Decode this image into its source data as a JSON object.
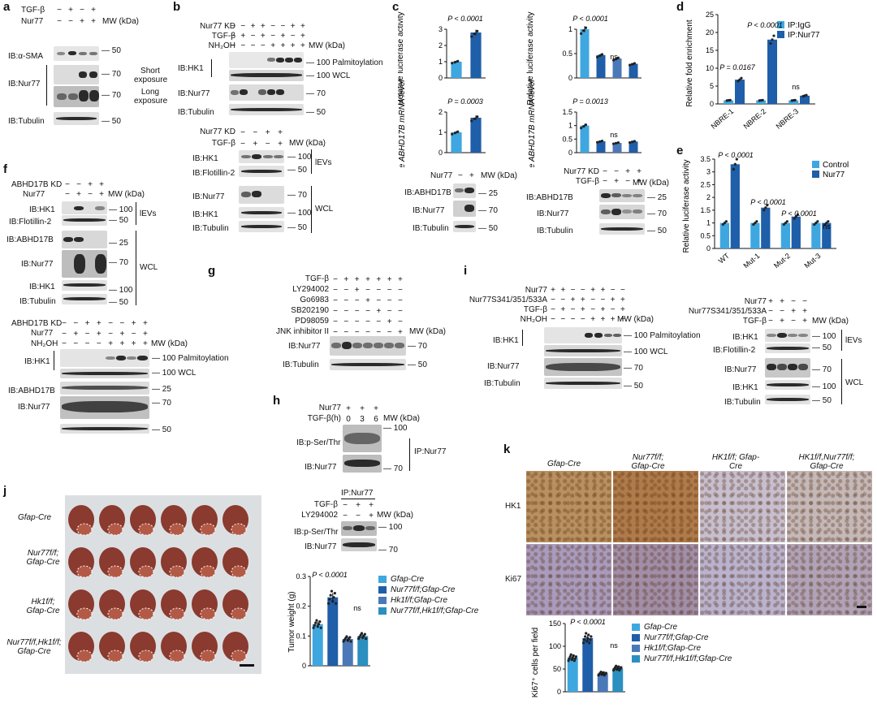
{
  "panel_letters": [
    "a",
    "b",
    "c",
    "d",
    "e",
    "f",
    "g",
    "h",
    "i",
    "j",
    "k"
  ],
  "panel_a": {
    "cond_rows": [
      [
        "TGF-β",
        "−",
        "+",
        "−",
        "+"
      ],
      [
        "Nur77",
        "−",
        "−",
        "+",
        "+"
      ]
    ],
    "mw_header": "MW (kDa)",
    "blots": [
      "IB:α-SMA",
      "IB:Nur77",
      "IB:Tubulin"
    ],
    "mw_marks": [
      "50",
      "70",
      "70",
      "50"
    ],
    "notes": [
      "Short exposure",
      "Long exposure"
    ]
  },
  "panel_b": {
    "top_cond": [
      [
        "Nur77 KD",
        "−",
        "−",
        "+",
        "+",
        "−",
        "−",
        "+",
        "+"
      ],
      [
        "TGF-β",
        "−",
        "+",
        "−",
        "+",
        "−",
        "+",
        "−",
        "+"
      ],
      [
        "NH₂OH",
        "−",
        "−",
        "−",
        "−",
        "+",
        "+",
        "+",
        "+"
      ]
    ],
    "top_blots": [
      "IB:HK1",
      "IB:Nur77",
      "IB:Tubulin"
    ],
    "top_notes": [
      "Palmitoylation",
      "WCL"
    ],
    "top_mw": [
      "100",
      "100",
      "70",
      "50"
    ],
    "bottom_cond": [
      [
        "Nur77 KD",
        "−",
        "−",
        "+",
        "+"
      ],
      [
        "TGF-β",
        "−",
        "+",
        "−",
        "+"
      ]
    ],
    "bottom_blots": [
      "IB:HK1",
      "IB:Flotillin-2",
      "IB:Nur77",
      "IB:HK1",
      "IB:Tubulin"
    ],
    "bottom_mw": [
      "100",
      "50",
      "70",
      "100",
      "50"
    ],
    "groups": [
      "lEVs",
      "WCL"
    ],
    "mw_header": "MW (kDa)"
  },
  "panel_c": {
    "ylabels": [
      "Relative luciferase activity",
      "Relative luciferase activity",
      "Relative ABHD17B mRNA level",
      "Relative ABHD17B mRNA level"
    ],
    "pvals": [
      "P < 0.0001",
      "P < 0.0001",
      "ns",
      "P = 0.0003",
      "P = 0.0013",
      "ns"
    ],
    "left_cond": [
      "Nur77",
      "−",
      "+"
    ],
    "right_cond": [
      [
        "Nur77 KD",
        "−",
        "−",
        "+",
        "+"
      ],
      [
        "TGF-β",
        "−",
        "+",
        "−",
        "+"
      ]
    ],
    "blots": [
      "IB:ABHD17B",
      "IB:Nur77",
      "IB:Tubulin"
    ],
    "mw": [
      "25",
      "70",
      "50"
    ],
    "mw_header": "MW (kDa)"
  },
  "panel_d": {
    "ylabel": "Relative fold enrichment",
    "legend": [
      "IP:IgG",
      "IP:Nur77"
    ],
    "categories": [
      "NBRE-1",
      "NBRE-2",
      "NBRE-3"
    ],
    "pvals": [
      "P = 0.0167",
      "P < 0.0001",
      "ns"
    ]
  },
  "panel_e": {
    "ylabel": "Relative luciferase activity",
    "legend": [
      "Control",
      "Nur77"
    ],
    "categories": [
      "WT",
      "Mut-1",
      "Mut-2",
      "Mut-3"
    ],
    "pvals": [
      "P < 0.0001",
      "P < 0.0001",
      "P < 0.0001",
      "ns"
    ]
  },
  "panel_f": {
    "top_cond": [
      [
        "ABHD17B KD",
        "−",
        "−",
        "+",
        "+"
      ],
      [
        "Nur77",
        "−",
        "+",
        "−",
        "+"
      ]
    ],
    "top_blots": [
      "IB:HK1",
      "IB:Flotillin-2",
      "IB:ABHD17B",
      "IB:Nur77",
      "IB:HK1",
      "IB:Tubulin"
    ],
    "top_mw": [
      "100",
      "50",
      "25",
      "70",
      "100",
      "50"
    ],
    "groups": [
      "lEVs",
      "WCL"
    ],
    "bottom_cond": [
      [
        "ABHD17B KD",
        "−",
        "−",
        "+",
        "+",
        "−",
        "−",
        "+",
        "+"
      ],
      [
        "Nur77",
        "−",
        "+",
        "−",
        "+",
        "−",
        "+",
        "−",
        "+"
      ],
      [
        "NH₂OH",
        "−",
        "−",
        "−",
        "−",
        "+",
        "+",
        "+",
        "+"
      ]
    ],
    "bottom_blots": [
      "IB:HK1",
      "IB:ABHD17B",
      "IB:Nur77"
    ],
    "bottom_notes": [
      "Palmitoylation",
      "WCL"
    ],
    "bottom_mw": [
      "100",
      "100",
      "25",
      "70",
      "50"
    ],
    "mw_header": "MW (kDa)"
  },
  "panel_g": {
    "cond": [
      [
        "TGF-β",
        "−",
        "+",
        "+",
        "+",
        "+",
        "+",
        "+"
      ],
      [
        "LY294002",
        "−",
        "−",
        "+",
        "−",
        "−",
        "−",
        "−"
      ],
      [
        "Go6983",
        "−",
        "−",
        "−",
        "+",
        "−",
        "−",
        "−"
      ],
      [
        "SB202190",
        "−",
        "−",
        "−",
        "−",
        "+",
        "−",
        "−"
      ],
      [
        "PD98059",
        "−",
        "−",
        "−",
        "−",
        "−",
        "+",
        "−"
      ],
      [
        "JNK inhibitor II",
        "−",
        "−",
        "−",
        "−",
        "−",
        "−",
        "+"
      ]
    ],
    "blots": [
      "IB:Nur77",
      "IB:Tubulin"
    ],
    "mw": [
      "70",
      "50"
    ],
    "mw_header": "MW (kDa)"
  },
  "panel_h": {
    "top_cond": [
      [
        "Nur77",
        "+",
        "+",
        "+"
      ],
      [
        "TGF-β(h)",
        "0",
        "3",
        "6"
      ]
    ],
    "top_blots": [
      "IB:p-Ser/Thr",
      "IB:Nur77"
    ],
    "top_mw": [
      "100",
      "70"
    ],
    "ip": "IP:Nur77",
    "bottom_header": "IP:Nur77",
    "bottom_cond": [
      [
        "TGF-β",
        "−",
        "+",
        "+"
      ],
      [
        "LY294002",
        "−",
        "−",
        "+"
      ]
    ],
    "bottom_blots": [
      "IB:p-Ser/Thr",
      "IB:Nur77"
    ],
    "bottom_mw": [
      "100",
      "70"
    ],
    "mw_header": "MW (kDa)"
  },
  "panel_i": {
    "top_cond": [
      [
        "Nur77",
        "+",
        "+",
        "−",
        "−",
        "+",
        "+",
        "−",
        "−"
      ],
      [
        "Nur77S341/351/533A",
        "−",
        "−",
        "+",
        "+",
        "−",
        "−",
        "+",
        "+"
      ],
      [
        "TGF-β",
        "−",
        "+",
        "−",
        "+",
        "−",
        "+",
        "−",
        "+"
      ],
      [
        "NH₂OH",
        "−",
        "−",
        "−",
        "−",
        "+",
        "+",
        "+",
        "+"
      ]
    ],
    "top_blots": [
      "IB:HK1",
      "IB:Nur77",
      "IB:Tubulin"
    ],
    "top_notes": [
      "Palmitoylation",
      "WCL"
    ],
    "top_mw": [
      "100",
      "100",
      "70",
      "50"
    ],
    "right_cond": [
      [
        "Nur77",
        "+",
        "+",
        "−",
        "−"
      ],
      [
        "Nur77S341/351/533A",
        "−",
        "−",
        "+",
        "+"
      ],
      [
        "TGF-β",
        "−",
        "+",
        "−",
        "+"
      ]
    ],
    "right_blots": [
      "IB:HK1",
      "IB:Flotillin-2",
      "IB:Nur77",
      "IB:HK1",
      "IB:Tubulin"
    ],
    "right_mw": [
      "100",
      "50",
      "70",
      "100",
      "50"
    ],
    "groups": [
      "lEVs",
      "WCL"
    ],
    "mw_header": "MW (kDa)"
  },
  "panel_j": {
    "row_labels": [
      "Gfap-Cre",
      "Nur77f/f; Gfap-Cre",
      "Hk1f/f; Gfap-Cre",
      "Nur77f/f,Hk1f/f; Gfap-Cre"
    ],
    "ylabel": "Tumor weight (g)",
    "legend": [
      "Gfap-Cre",
      "Nur77f/f;Gfap-Cre",
      "Hk1f/f;Gfap-Cre",
      "Nur77f/f,Hk1f/f;Gfap-Cre"
    ],
    "pvals": [
      "P < 0.0001",
      "ns"
    ]
  },
  "panel_k": {
    "col_labels": [
      "Gfap-Cre",
      "Nur77f/f; Gfap-Cre",
      "HK1f/f; Gfap-Cre",
      "HK1f/f,Nur77f/f; Gfap-Cre"
    ],
    "row_labels": [
      "HK1",
      "Ki67"
    ],
    "ylabel": "Ki67⁺ cells per field",
    "legend": [
      "Gfap-Cre",
      "Nur77f/f;Gfap-Cre",
      "Hk1f/f;Gfap-Cre",
      "Nur77f/f,Hk1f/f;Gfap-Cre"
    ],
    "pvals": [
      "P < 0.0001",
      "ns"
    ]
  },
  "colors": {
    "light_blue": "#3fa7e0",
    "dark_blue": "#1f5ea8",
    "mid_blue": "#4b79b8",
    "teal": "#2b8fbf",
    "brown": "#a04436"
  },
  "chart_data": [
    {
      "id": "c1",
      "type": "bar",
      "categories": [
        "−",
        "+"
      ],
      "values": [
        1.0,
        2.8
      ],
      "ylim": [
        0,
        3
      ],
      "yticks": [
        0,
        1,
        2,
        3
      ],
      "ylabel": "Relative luciferase activity"
    },
    {
      "id": "c2",
      "type": "bar",
      "categories": [
        "−/−",
        "−/+",
        "+/−",
        "+/+"
      ],
      "values": [
        1.0,
        0.47,
        0.4,
        0.29
      ],
      "ylim": [
        0,
        1.0
      ],
      "yticks": [
        0,
        0.5,
        1.0
      ],
      "ylabel": "Relative luciferase activity"
    },
    {
      "id": "c3",
      "type": "bar",
      "categories": [
        "−",
        "+"
      ],
      "values": [
        1.0,
        1.72
      ],
      "ylim": [
        0,
        2.0
      ],
      "yticks": [
        0,
        1.0,
        2.0
      ],
      "ylabel": "Relative ABHD17B mRNA level"
    },
    {
      "id": "c4",
      "type": "bar",
      "categories": [
        "−/−",
        "−/+",
        "+/−",
        "+/+"
      ],
      "values": [
        1.0,
        0.42,
        0.36,
        0.41
      ],
      "ylim": [
        0,
        1.5
      ],
      "yticks": [
        0,
        0.5,
        1.0,
        1.5
      ],
      "ylabel": "Relative ABHD17B mRNA level"
    },
    {
      "id": "d",
      "type": "bar",
      "categories": [
        "NBRE-1",
        "NBRE-2",
        "NBRE-3"
      ],
      "series": [
        {
          "name": "IP:IgG",
          "values": [
            1,
            1,
            1
          ]
        },
        {
          "name": "IP:Nur77",
          "values": [
            6.8,
            18,
            2.3
          ]
        }
      ],
      "ylim": [
        0,
        25
      ],
      "yticks": [
        0,
        5,
        10,
        15,
        20,
        25
      ]
    },
    {
      "id": "e",
      "type": "bar",
      "categories": [
        "WT",
        "Mut-1",
        "Mut-2",
        "Mut-3"
      ],
      "series": [
        {
          "name": "Control",
          "values": [
            1,
            1,
            1,
            1
          ]
        },
        {
          "name": "Nur77",
          "values": [
            3.3,
            1.6,
            1.25,
            1.0
          ]
        }
      ],
      "ylim": [
        0,
        3.5
      ],
      "yticks": [
        0,
        0.5,
        1.0,
        1.5,
        2.0,
        2.5,
        3.0,
        3.5
      ]
    },
    {
      "id": "j",
      "type": "bar",
      "categories": [
        "Gfap-Cre",
        "Nur77f/f;Gfap-Cre",
        "Hk1f/f;Gfap-Cre",
        "Nur77f/f,Hk1f/f;Gfap-Cre"
      ],
      "values": [
        0.14,
        0.23,
        0.09,
        0.1
      ],
      "ylim": [
        0,
        0.3
      ],
      "yticks": [
        0,
        0.1,
        0.2,
        0.3
      ]
    },
    {
      "id": "k",
      "type": "bar",
      "categories": [
        "Gfap-Cre",
        "Nur77f/f;Gfap-Cre",
        "Hk1f/f;Gfap-Cre",
        "Nur77f/f,Hk1f/f;Gfap-Cre"
      ],
      "values": [
        75,
        118,
        40,
        52
      ],
      "ylim": [
        0,
        150
      ],
      "yticks": [
        0,
        50,
        100,
        150
      ]
    }
  ]
}
